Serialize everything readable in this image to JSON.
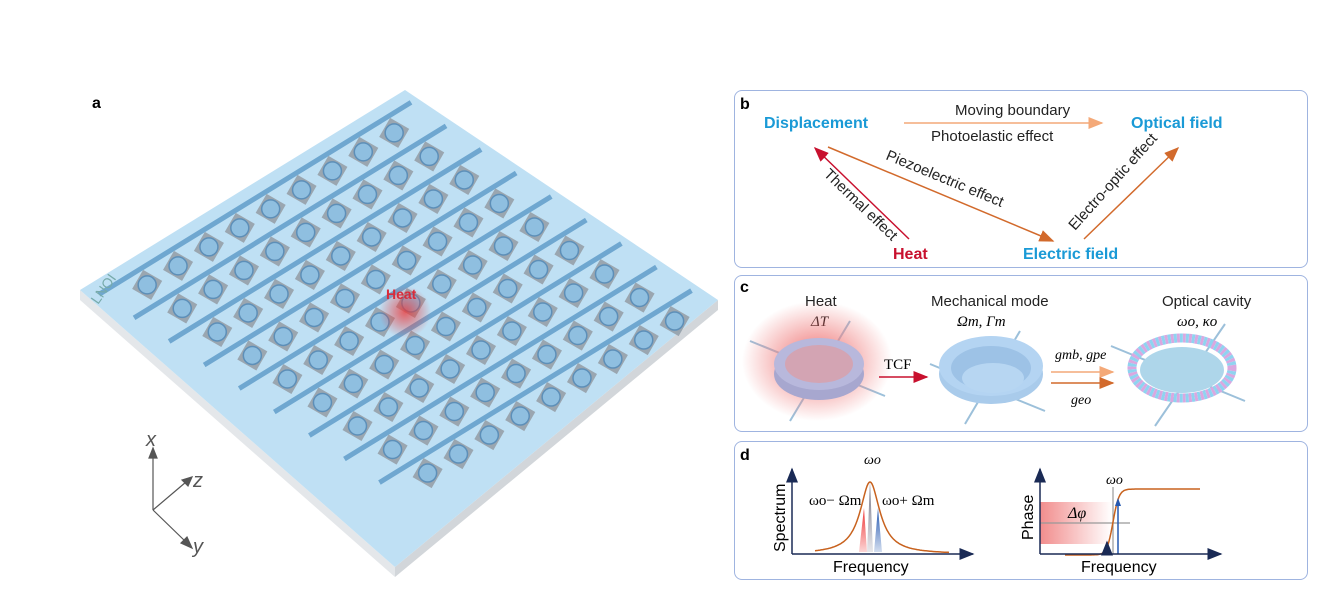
{
  "panel_a": {
    "label": "a",
    "chip_label": "LNOI",
    "heat_label": "Heat",
    "axes": {
      "x": "x",
      "y": "y",
      "z": "z"
    },
    "colors": {
      "chip": "#bfe0f4",
      "waveguide": "#6fa7d0",
      "heat": "#d92b3a"
    }
  },
  "panel_b": {
    "label": "b",
    "nodes": {
      "displacement": "Displacement",
      "optical": "Optical field",
      "heat": "Heat",
      "electric": "Electric field"
    },
    "edges": {
      "moving_boundary": "Moving boundary",
      "photoelastic": "Photoelastic effect",
      "piezoelectric": "Piezoelectric effect",
      "thermal": "Thermal effect",
      "electro_optic": "Electro-optic effect"
    },
    "colors": {
      "node": "#1a9ad6",
      "heat": "#c8102e"
    }
  },
  "panel_c": {
    "label": "c",
    "heat_title": "Heat",
    "heat_sub": "ΔT",
    "mech_title": "Mechanical mode",
    "mech_sub": "Ωm, Γm",
    "opt_title": "Optical cavity",
    "opt_sub": "ωo, κo",
    "tcf": "TCF",
    "g_top": "gmb, gpe",
    "g_bottom": "geo"
  },
  "panel_d": {
    "label": "d",
    "spectrum": {
      "ylabel": "Spectrum",
      "xlabel": "Frequency",
      "peak": "ωo",
      "lower": "ωo− Ωm",
      "upper": "ωo+ Ωm"
    },
    "phase": {
      "ylabel": "Phase",
      "xlabel": "Frequency",
      "peak": "ωo",
      "delta": "Δφ"
    }
  }
}
